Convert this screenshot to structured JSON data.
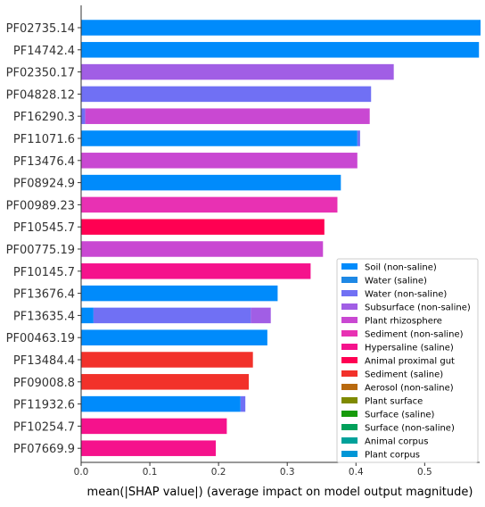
{
  "chart_data": {
    "type": "bar",
    "orientation": "horizontal",
    "stacked": true,
    "xlabel": "mean(|SHAP value|) (average impact on model output magnitude)",
    "xlim": [
      0,
      0.58
    ],
    "xticks": [
      "0.0",
      "0.1",
      "0.2",
      "0.3",
      "0.4",
      "0.5"
    ],
    "xtick_values": [
      0.0,
      0.1,
      0.2,
      0.3,
      0.4,
      0.5
    ],
    "grid": false,
    "legend_position": "lower-right",
    "categories": [
      "PF02735.14",
      "PF14742.4",
      "PF02350.17",
      "PF04828.12",
      "PF16290.3",
      "PF11071.6",
      "PF13476.4",
      "PF08924.9",
      "PF00989.23",
      "PF10545.7",
      "PF00775.19",
      "PF10145.7",
      "PF13676.4",
      "PF13635.4",
      "PF00463.19",
      "PF13484.4",
      "PF09008.8",
      "PF11932.6",
      "PF10254.7",
      "PF07669.9"
    ],
    "series": [
      {
        "name": "Soil (non-saline)",
        "color": "#008bfb",
        "values": [
          0.585,
          0.579,
          0,
          0,
          0,
          0.402,
          0,
          0.378,
          0,
          0,
          0,
          0,
          0.286,
          0.018,
          0.271,
          0,
          0,
          0.232,
          0,
          0
        ]
      },
      {
        "name": "Water (saline)",
        "color": "#1e88e5",
        "values": [
          0,
          0,
          0,
          0,
          0,
          0,
          0,
          0,
          0,
          0,
          0,
          0,
          0,
          0,
          0,
          0,
          0,
          0,
          0,
          0
        ]
      },
      {
        "name": "Water (non-saline)",
        "color": "#7070f4",
        "values": [
          0,
          0,
          0,
          0.422,
          0.006,
          0.004,
          0,
          0,
          0,
          0,
          0,
          0,
          0,
          0.229,
          0,
          0,
          0,
          0.007,
          0,
          0
        ]
      },
      {
        "name": "Subsurface (non-saline)",
        "color": "#a15ee5",
        "values": [
          0,
          0,
          0.455,
          0,
          0,
          0,
          0,
          0,
          0,
          0,
          0,
          0,
          0,
          0.029,
          0,
          0,
          0,
          0,
          0,
          0
        ]
      },
      {
        "name": "Plant rhizosphere",
        "color": "#c948d2",
        "values": [
          0,
          0,
          0,
          0,
          0.414,
          0,
          0.402,
          0,
          0,
          0,
          0.352,
          0,
          0,
          0,
          0,
          0,
          0,
          0,
          0,
          0
        ]
      },
      {
        "name": "Sediment (non-saline)",
        "color": "#e831b3",
        "values": [
          0,
          0,
          0,
          0,
          0,
          0,
          0,
          0,
          0.373,
          0,
          0,
          0,
          0,
          0,
          0,
          0,
          0,
          0,
          0,
          0
        ]
      },
      {
        "name": "Hypersaline (saline)",
        "color": "#f5128c",
        "values": [
          0,
          0,
          0,
          0,
          0,
          0,
          0,
          0,
          0,
          0,
          0,
          0.334,
          0,
          0,
          0,
          0,
          0,
          0,
          0.212,
          0.196
        ]
      },
      {
        "name": "Animal proximal gut",
        "color": "#ff0052",
        "values": [
          0,
          0,
          0,
          0,
          0,
          0,
          0,
          0,
          0,
          0.354,
          0,
          0,
          0,
          0,
          0,
          0,
          0,
          0,
          0,
          0
        ]
      },
      {
        "name": "Sediment (saline)",
        "color": "#f2312a",
        "values": [
          0,
          0,
          0,
          0,
          0,
          0,
          0,
          0,
          0,
          0,
          0,
          0,
          0,
          0,
          0,
          0.25,
          0.244,
          0,
          0,
          0
        ]
      },
      {
        "name": "Aerosol (non-saline)",
        "color": "#b8690e",
        "values": [
          0,
          0,
          0,
          0,
          0,
          0,
          0,
          0,
          0,
          0,
          0,
          0,
          0,
          0,
          0,
          0,
          0,
          0,
          0,
          0
        ]
      },
      {
        "name": "Plant surface",
        "color": "#7f8a00",
        "values": [
          0,
          0,
          0,
          0,
          0,
          0,
          0,
          0,
          0,
          0,
          0,
          0,
          0,
          0,
          0,
          0,
          0,
          0,
          0,
          0
        ]
      },
      {
        "name": "Surface (saline)",
        "color": "#169b0a",
        "values": [
          0,
          0,
          0,
          0,
          0,
          0,
          0,
          0,
          0,
          0,
          0,
          0,
          0,
          0,
          0,
          0,
          0,
          0,
          0,
          0
        ]
      },
      {
        "name": "Surface (non-saline)",
        "color": "#00a05a",
        "values": [
          0,
          0,
          0,
          0,
          0,
          0,
          0,
          0,
          0,
          0,
          0,
          0,
          0,
          0,
          0,
          0,
          0,
          0,
          0,
          0
        ]
      },
      {
        "name": "Animal corpus",
        "color": "#00a19a",
        "values": [
          0,
          0,
          0,
          0,
          0,
          0,
          0,
          0,
          0,
          0,
          0,
          0,
          0,
          0,
          0,
          0,
          0,
          0,
          0,
          0
        ]
      },
      {
        "name": "Plant corpus",
        "color": "#0096d6",
        "values": [
          0,
          0,
          0,
          0,
          0,
          0,
          0,
          0,
          0,
          0,
          0,
          0,
          0,
          0,
          0,
          0,
          0,
          0,
          0,
          0
        ]
      }
    ]
  }
}
